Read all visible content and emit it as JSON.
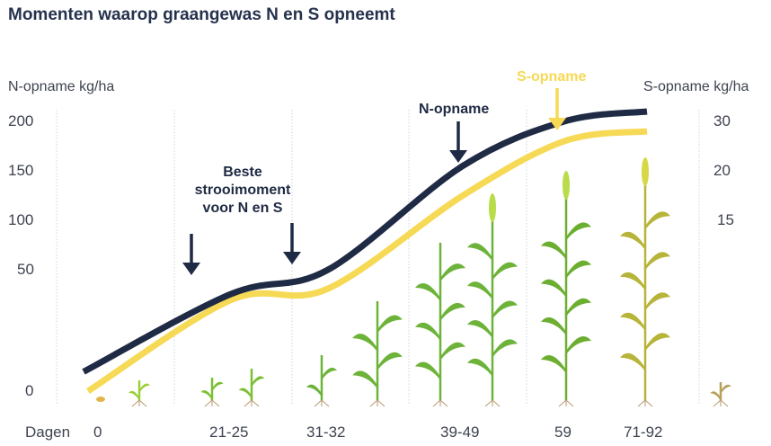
{
  "title": "Momenten waarop graangewas N en S opneemt",
  "chart_data": {
    "type": "line",
    "title": "Momenten waarop graangewas N en S opneemt",
    "xlabel": "Dagen",
    "categories": [
      "0",
      "21-25",
      "31-32",
      "39-49",
      "59",
      "71-92"
    ],
    "y_left": {
      "label": "N-opname kg/ha",
      "ticks": [
        0,
        50,
        100,
        150,
        200
      ]
    },
    "y_right": {
      "label": "S-opname kg/ha",
      "ticks": [
        15,
        20,
        30
      ]
    },
    "series": [
      {
        "name": "N-opname",
        "axis": "left",
        "color": "#1f2a44",
        "values": [
          8,
          40,
          50,
          155,
          200,
          210
        ]
      },
      {
        "name": "S-opname",
        "axis": "right",
        "color": "#f6d955",
        "values": [
          0,
          8,
          9,
          17.5,
          26,
          28
        ]
      }
    ],
    "grid": "vertical dotted",
    "annotations": [
      "Beste strooimoment voor N en S",
      "N-opname",
      "S-opname"
    ]
  }
}
